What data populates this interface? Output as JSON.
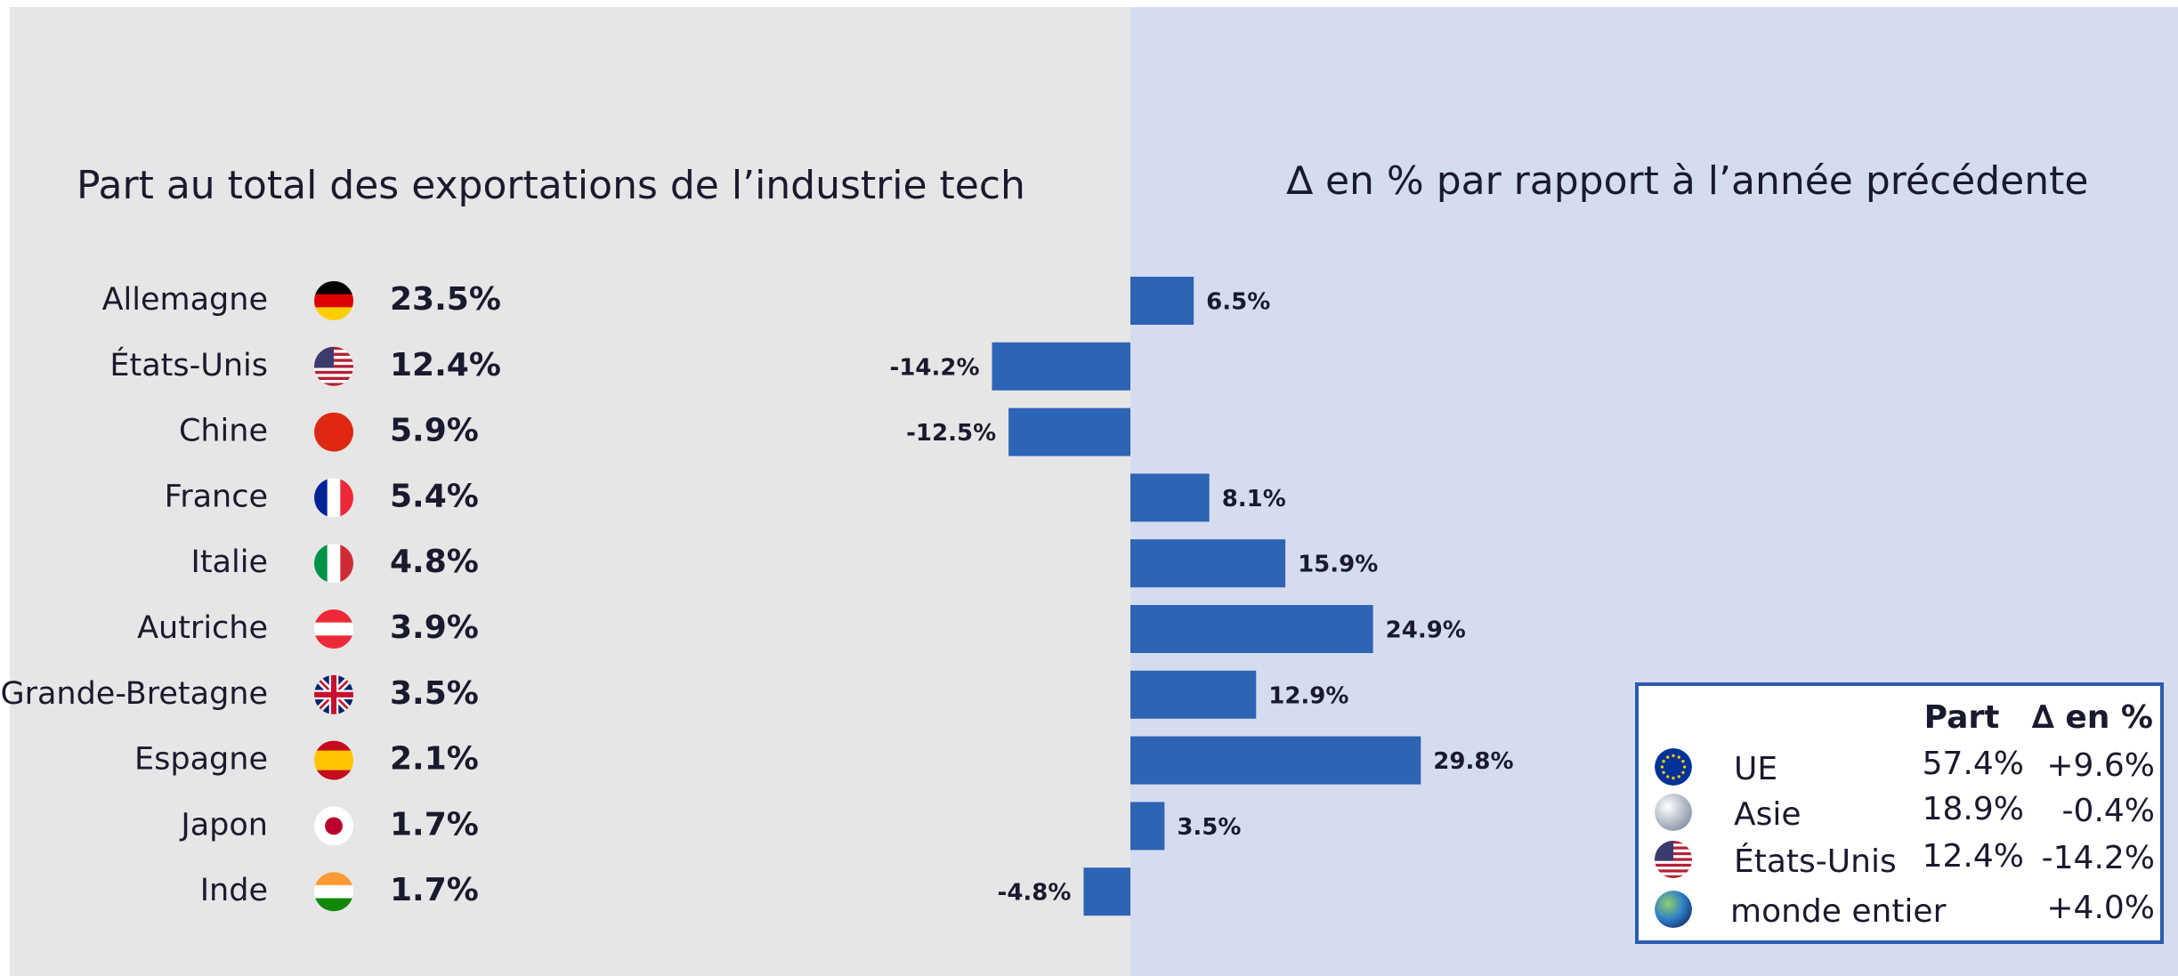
{
  "chart_data": {
    "type": "bar",
    "orientation": "horizontal",
    "title": "Part au total des exportations de l’industrie tech",
    "subtitle": "∆ en % par rapport à l’année précédente",
    "categories": [
      "Allemagne",
      "États-Unis",
      "Chine",
      "France",
      "Italie",
      "Autriche",
      "Grande-Bretagne",
      "Espagne",
      "Japon",
      "Inde"
    ],
    "shares": [
      23.5,
      12.4,
      5.9,
      5.4,
      4.8,
      3.9,
      3.5,
      2.1,
      1.7,
      1.7
    ],
    "share_labels": [
      "23.5%",
      "12.4%",
      "5.9%",
      "5.4%",
      "4.8%",
      "3.9%",
      "3.5%",
      "2.1%",
      "1.7%",
      "1.7%"
    ],
    "values": [
      6.5,
      -14.2,
      -12.5,
      8.1,
      15.9,
      24.9,
      12.9,
      29.8,
      3.5,
      -4.8
    ],
    "value_labels": [
      "6.5%",
      "-14.2%",
      "-12.5%",
      "8.1%",
      "15.9%",
      "24.9%",
      "12.9%",
      "29.8%",
      "3.5%",
      "-4.8%"
    ],
    "color": "#2e64b4",
    "legend_table": {
      "headers": [
        "Part",
        "∆ en %"
      ],
      "rows": [
        {
          "name": "UE",
          "part": "57.4%",
          "delta": "+9.6%"
        },
        {
          "name": "Asie",
          "part": "18.9%",
          "delta": "-0.4%"
        },
        {
          "name": "États-Unis",
          "part": "12.4%",
          "delta": "-14.2%"
        },
        {
          "name": "monde entier",
          "part": null,
          "delta": "+4.0%"
        }
      ]
    }
  }
}
